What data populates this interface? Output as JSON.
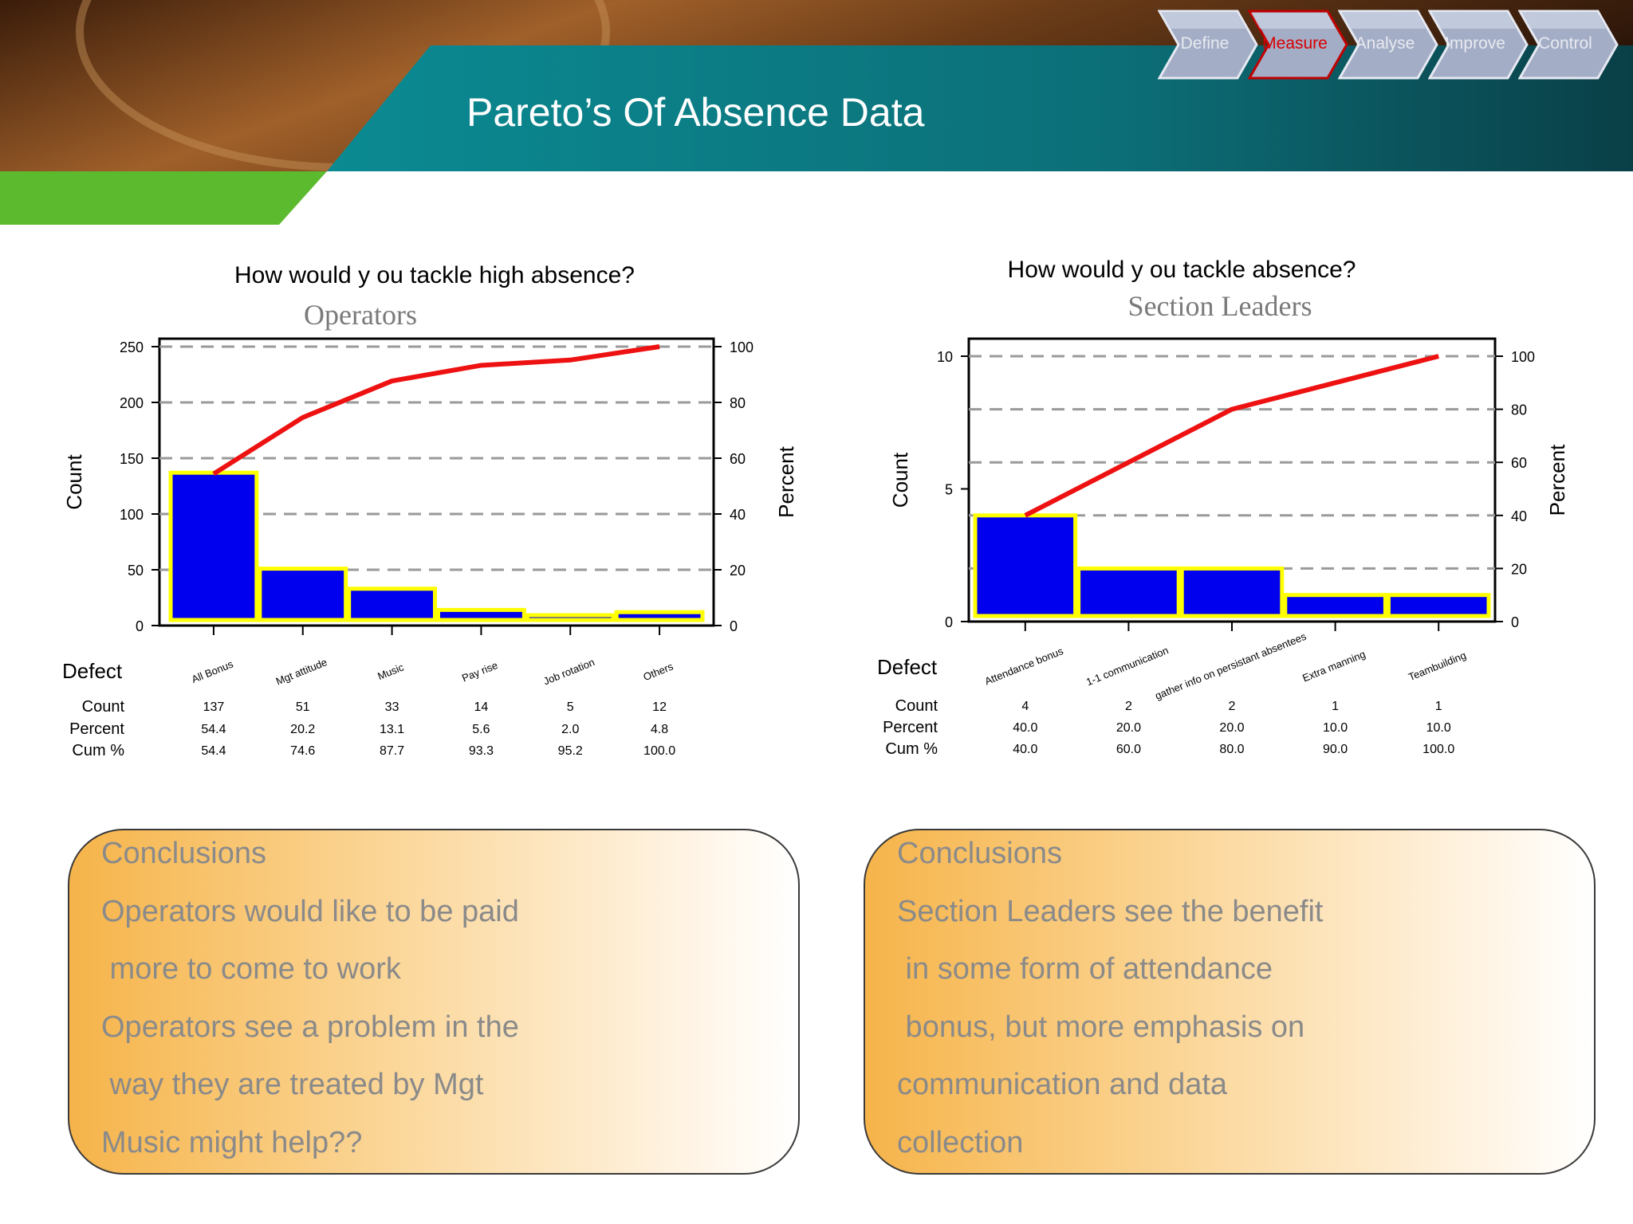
{
  "slide": {
    "title": "Pareto’s Of Absence Data",
    "colors": {
      "teal": "#0b7c86",
      "green": "#5cba2e",
      "bar": "#0000ee",
      "bar_outline": "#ffff00",
      "cum_line": "#ee1111"
    }
  },
  "nav": {
    "steps": [
      {
        "label": "Define",
        "active": false
      },
      {
        "label": "Measure",
        "active": true
      },
      {
        "label": "Analyse",
        "active": false
      },
      {
        "label": "Improve",
        "active": false
      },
      {
        "label": "Control",
        "active": false
      }
    ]
  },
  "chart_data": [
    {
      "type": "bar",
      "title": "How would y ou tackle high absence?",
      "subtitle": "Operators",
      "ylabel": "Count",
      "y2label": "Percent",
      "row_header": "Defect",
      "row_labels": [
        "Count",
        "Percent",
        "Cum %"
      ],
      "ylim": [
        0,
        250
      ],
      "yticks": [
        0,
        50,
        100,
        150,
        200,
        250
      ],
      "y2lim": [
        0,
        100
      ],
      "y2ticks": [
        0,
        20,
        40,
        60,
        80,
        100
      ],
      "categories": [
        "All Bonus",
        "Mgt attitude",
        "Music",
        "Pay rise",
        "Job rotation",
        "Others"
      ],
      "values": [
        137,
        51,
        33,
        14,
        5,
        12
      ],
      "percent": [
        "54.4",
        "20.2",
        "13.1",
        "5.6",
        "2.0",
        "4.8"
      ],
      "cum_percent": [
        "54.4",
        "74.6",
        "87.7",
        "93.3",
        "95.2",
        "100.0"
      ],
      "cum_line": [
        54.4,
        74.6,
        87.7,
        93.3,
        95.2,
        100.0
      ],
      "grid": true
    },
    {
      "type": "bar",
      "title": "How would y ou tackle absence?",
      "subtitle": "Section Leaders",
      "ylabel": "Count",
      "y2label": "Percent",
      "row_header": "Defect",
      "row_labels": [
        "Count",
        "Percent",
        "Cum %"
      ],
      "ylim": [
        0,
        10
      ],
      "yticks": [
        0,
        5,
        10
      ],
      "y2lim": [
        0,
        100
      ],
      "y2ticks": [
        0,
        20,
        40,
        60,
        80,
        100
      ],
      "categories": [
        "Attendance bonus",
        "1-1 communication",
        "gather info on persistant absentees",
        "Extra manning",
        "Teambuilding"
      ],
      "values": [
        4,
        2,
        2,
        1,
        1
      ],
      "percent": [
        "40.0",
        "20.0",
        "20.0",
        "10.0",
        "10.0"
      ],
      "cum_percent": [
        "40.0",
        "60.0",
        "80.0",
        "90.0",
        "100.0"
      ],
      "cum_line": [
        40.0,
        60.0,
        80.0,
        90.0,
        100.0
      ],
      "grid": true
    }
  ],
  "conclusions": [
    {
      "lines": [
        "Conclusions",
        "Operators would like to be paid",
        " more to come to work",
        "Operators see a problem in the",
        " way they are treated by Mgt",
        "Music might help??"
      ]
    },
    {
      "lines": [
        "Conclusions",
        "Section Leaders see the benefit",
        " in some form of attendance",
        " bonus, but more emphasis on",
        "communication and data",
        "collection"
      ]
    }
  ]
}
